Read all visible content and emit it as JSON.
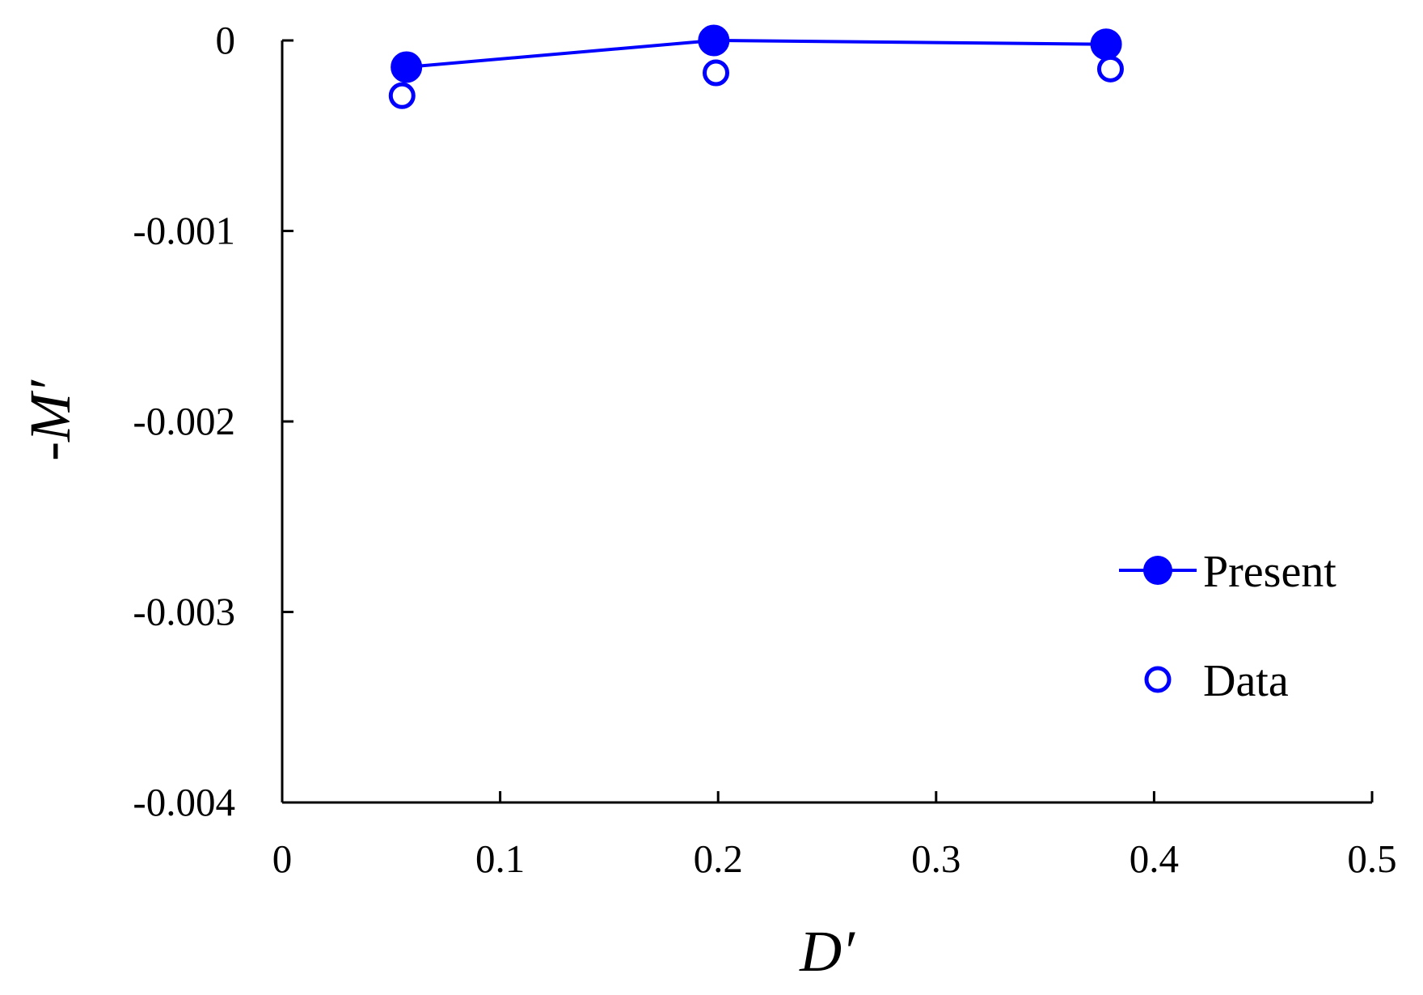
{
  "chart_data": {
    "type": "scatter",
    "title": "",
    "xlabel": "D′",
    "ylabel": "-M′",
    "xlim": [
      0,
      0.5
    ],
    "ylim": [
      -0.004,
      0
    ],
    "x_ticks": [
      0,
      0.1,
      0.2,
      0.3,
      0.4,
      0.5
    ],
    "x_tick_labels": [
      "0",
      "0.1",
      "0.2",
      "0.3",
      "0.4",
      "0.5"
    ],
    "y_ticks": [
      0,
      -0.001,
      -0.002,
      -0.003,
      -0.004
    ],
    "y_tick_labels": [
      "0",
      "-0.001",
      "-0.002",
      "-0.003",
      "-0.004"
    ],
    "grid": false,
    "legend_position": "right",
    "series": [
      {
        "name": "Present",
        "style": "line-with-filled-markers",
        "color": "#0000ff",
        "x": [
          0.057,
          0.198,
          0.378
        ],
        "y": [
          -0.00014,
          0.0,
          -2e-05
        ]
      },
      {
        "name": "Data",
        "style": "open-markers",
        "color": "#0000ff",
        "x": [
          0.055,
          0.199,
          0.38
        ],
        "y": [
          -0.00029,
          -0.00017,
          -0.00015
        ]
      }
    ]
  }
}
